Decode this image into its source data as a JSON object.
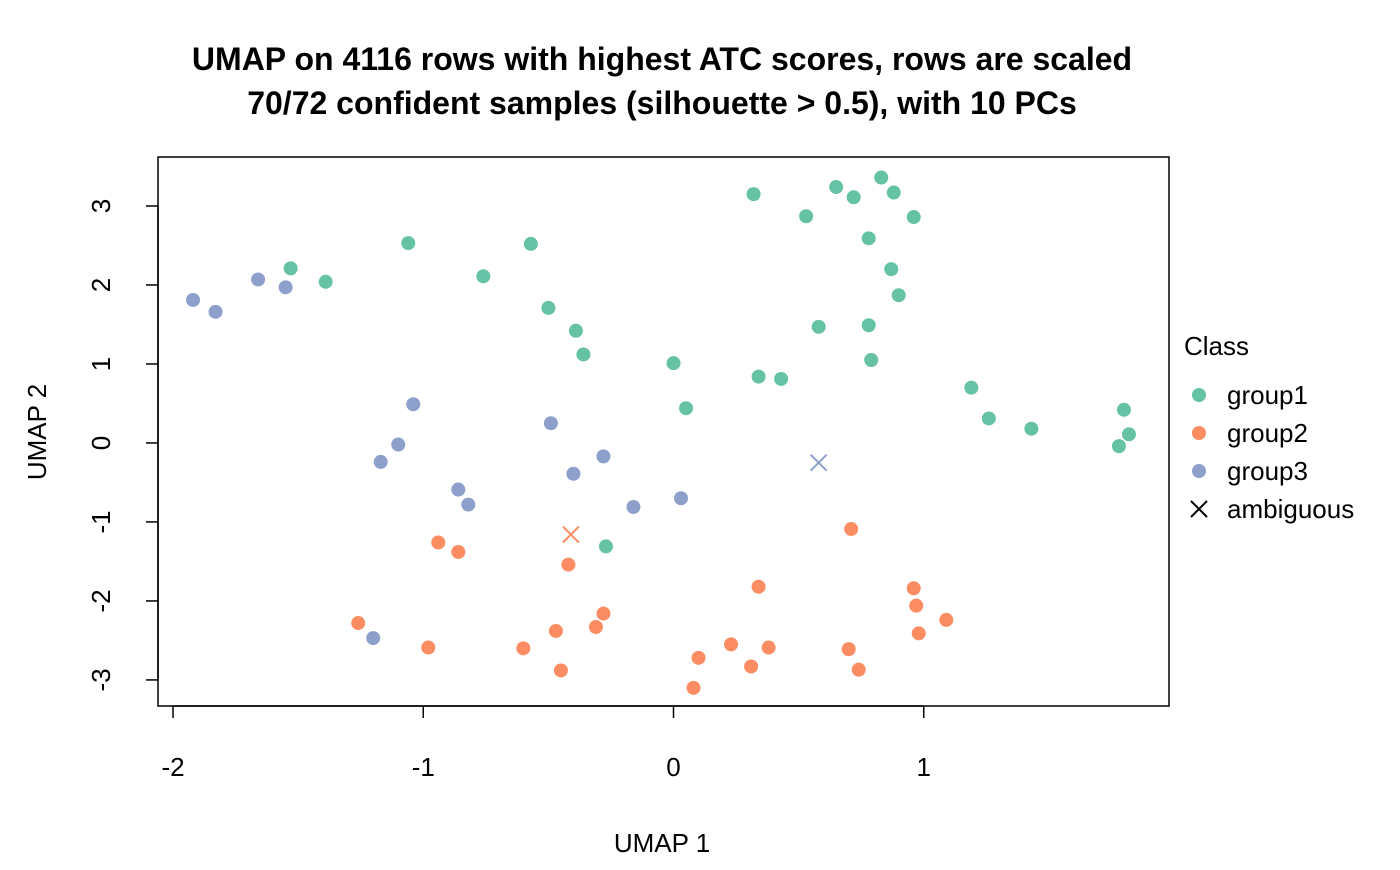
{
  "chart_data": {
    "type": "scatter",
    "title": "UMAP on 4116 rows with highest ATC scores, rows are scaled",
    "subtitle": "70/72 confident samples (silhouette > 0.5), with 10 PCs",
    "xlabel": "UMAP 1",
    "ylabel": "UMAP 2",
    "xlim": [
      -2.06,
      1.98
    ],
    "ylim": [
      -3.33,
      3.62
    ],
    "x_ticks": [
      -2,
      -1,
      0,
      1
    ],
    "y_ticks": [
      -3,
      -2,
      -1,
      0,
      1,
      2,
      3
    ],
    "grid": false,
    "legend": {
      "title": "Class",
      "placement": "right",
      "entries": [
        {
          "label": "group1",
          "marker": "dot",
          "color": "#66C2A5"
        },
        {
          "label": "group2",
          "marker": "dot",
          "color": "#FC8D62"
        },
        {
          "label": "group3",
          "marker": "dot",
          "color": "#8DA0CB"
        },
        {
          "label": "ambiguous",
          "marker": "cross",
          "color": "#000000"
        }
      ]
    },
    "series": [
      {
        "name": "group1",
        "color": "#66C2A5",
        "marker": "dot",
        "points": [
          [
            0.32,
            3.15
          ],
          [
            0.65,
            3.24
          ],
          [
            0.72,
            3.11
          ],
          [
            0.83,
            3.36
          ],
          [
            0.88,
            3.17
          ],
          [
            0.53,
            2.87
          ],
          [
            0.96,
            2.86
          ],
          [
            0.78,
            2.59
          ],
          [
            0.87,
            2.2
          ],
          [
            0.9,
            1.87
          ],
          [
            0.58,
            1.47
          ],
          [
            0.78,
            1.49
          ],
          [
            0.79,
            1.05
          ],
          [
            0.34,
            0.84
          ],
          [
            0.43,
            0.81
          ],
          [
            0.0,
            1.01
          ],
          [
            0.05,
            0.44
          ],
          [
            1.19,
            0.7
          ],
          [
            1.26,
            0.31
          ],
          [
            1.43,
            0.18
          ],
          [
            1.8,
            0.42
          ],
          [
            1.82,
            0.11
          ],
          [
            1.78,
            -0.04
          ],
          [
            -1.06,
            2.53
          ],
          [
            -0.57,
            2.52
          ],
          [
            -1.53,
            2.21
          ],
          [
            -1.39,
            2.04
          ],
          [
            -0.76,
            2.11
          ],
          [
            -0.5,
            1.71
          ],
          [
            -0.39,
            1.42
          ],
          [
            -0.36,
            1.12
          ],
          [
            -0.27,
            -1.31
          ]
        ]
      },
      {
        "name": "group2",
        "color": "#FC8D62",
        "marker": "dot",
        "points": [
          [
            -0.94,
            -1.26
          ],
          [
            -0.86,
            -1.38
          ],
          [
            -0.42,
            -1.54
          ],
          [
            0.71,
            -1.09
          ],
          [
            0.34,
            -1.82
          ],
          [
            0.96,
            -1.84
          ],
          [
            0.97,
            -2.06
          ],
          [
            1.09,
            -2.24
          ],
          [
            0.98,
            -2.41
          ],
          [
            -1.26,
            -2.28
          ],
          [
            -0.98,
            -2.59
          ],
          [
            -0.47,
            -2.38
          ],
          [
            -0.31,
            -2.33
          ],
          [
            -0.28,
            -2.16
          ],
          [
            -0.6,
            -2.6
          ],
          [
            -0.45,
            -2.88
          ],
          [
            0.1,
            -2.72
          ],
          [
            0.23,
            -2.55
          ],
          [
            0.38,
            -2.59
          ],
          [
            0.31,
            -2.83
          ],
          [
            0.7,
            -2.61
          ],
          [
            0.74,
            -2.87
          ],
          [
            0.08,
            -3.1
          ]
        ]
      },
      {
        "name": "group3",
        "color": "#8DA0CB",
        "marker": "dot",
        "points": [
          [
            -1.92,
            1.81
          ],
          [
            -1.83,
            1.66
          ],
          [
            -1.66,
            2.07
          ],
          [
            -1.55,
            1.97
          ],
          [
            -1.04,
            0.49
          ],
          [
            -1.1,
            -0.02
          ],
          [
            -1.17,
            -0.24
          ],
          [
            -0.49,
            0.25
          ],
          [
            -0.4,
            -0.39
          ],
          [
            -0.28,
            -0.17
          ],
          [
            0.03,
            -0.7
          ],
          [
            -0.16,
            -0.81
          ],
          [
            -0.86,
            -0.59
          ],
          [
            -0.82,
            -0.78
          ],
          [
            -1.2,
            -2.47
          ]
        ]
      },
      {
        "name": "ambiguous",
        "marker": "cross",
        "points": [
          {
            "x": -0.41,
            "y": -1.16,
            "color": "#FC8D62"
          },
          {
            "x": 0.58,
            "y": -0.25,
            "color": "#8DA0CB"
          }
        ]
      }
    ]
  }
}
